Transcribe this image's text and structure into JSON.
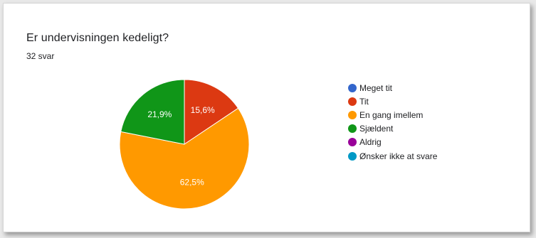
{
  "question": {
    "title": "Er undervisningen kedeligt?",
    "responses": "32 svar"
  },
  "chart_data": {
    "type": "pie",
    "title": "Er undervisningen kedeligt?",
    "subtitle": "32 svar",
    "legend_position": "right",
    "slices": [
      {
        "label": "Meget tit",
        "value": 0,
        "color": "#3366cc",
        "display": ""
      },
      {
        "label": "Tit",
        "value": 15.6,
        "color": "#dc3912",
        "display": "15,6%"
      },
      {
        "label": "En gang imellem",
        "value": 62.5,
        "color": "#ff9900",
        "display": "62,5%"
      },
      {
        "label": "Sjældent",
        "value": 21.9,
        "color": "#109618",
        "display": "21,9%"
      },
      {
        "label": "Aldrig",
        "value": 0,
        "color": "#990099",
        "display": ""
      },
      {
        "label": "Ønsker ikke at svare",
        "value": 0,
        "color": "#0099c6",
        "display": ""
      }
    ]
  }
}
